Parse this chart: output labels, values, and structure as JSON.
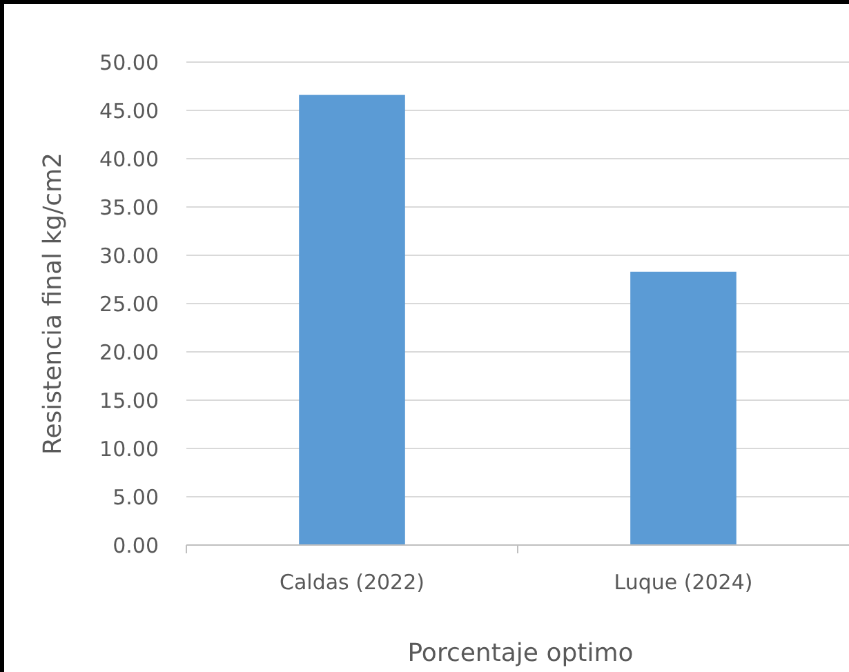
{
  "chart_data": {
    "type": "bar",
    "xlabel": "Porcentaje optimo",
    "ylabel": "Resistencia final kg/cm2",
    "categories": [
      "Caldas (2022)",
      "Luque (2024)"
    ],
    "values": [
      46.6,
      28.3
    ],
    "color": "#5b9bd5",
    "ylim": [
      0,
      50
    ],
    "yticks": [
      {
        "value": 0,
        "label": "0.00"
      },
      {
        "value": 5,
        "label": "5.00"
      },
      {
        "value": 10,
        "label": "10.00"
      },
      {
        "value": 15,
        "label": "15.00"
      },
      {
        "value": 20,
        "label": "20.00"
      },
      {
        "value": 25,
        "label": "25.00"
      },
      {
        "value": 30,
        "label": "30.00"
      },
      {
        "value": 35,
        "label": "35.00"
      },
      {
        "value": 40,
        "label": "40.00"
      },
      {
        "value": 45,
        "label": "45.00"
      },
      {
        "value": 50,
        "label": "50.00"
      }
    ],
    "grid": "y"
  }
}
